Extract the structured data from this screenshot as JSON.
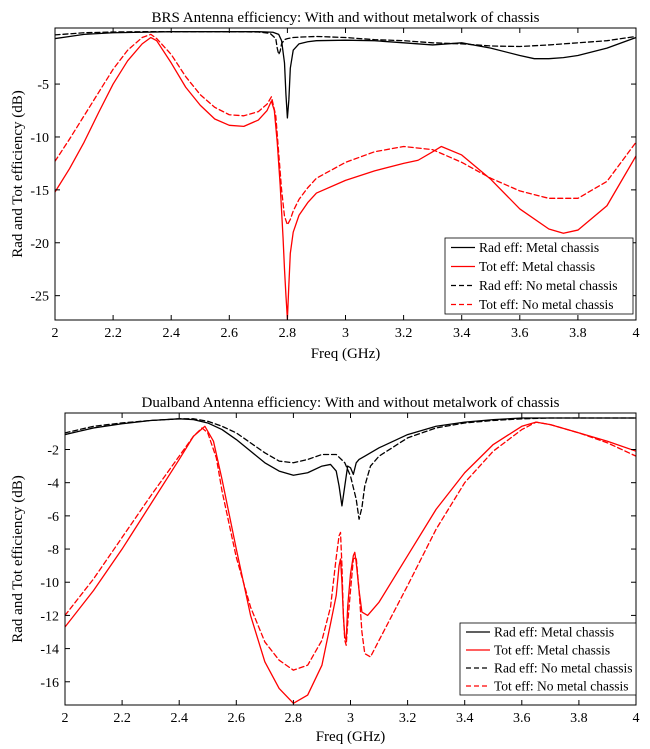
{
  "chart_data": [
    {
      "type": "line",
      "title": "BRS Antenna efficiency: With and without metalwork of chassis",
      "xlabel": "Freq (GHz)",
      "ylabel": "Rad and Tot efficiency (dB)",
      "xlim": [
        2,
        4
      ],
      "ylim": [
        -27.3,
        0.3
      ],
      "xticks": [
        2,
        2.2,
        2.4,
        2.6,
        2.8,
        3,
        3.2,
        3.4,
        3.6,
        3.8,
        4
      ],
      "xtick_labels": [
        "2",
        "2.2",
        "2.4",
        "2.6",
        "2.8",
        "3",
        "3.2",
        "3.4",
        "3.6",
        "3.8",
        "4"
      ],
      "yticks": [
        -5,
        -10,
        -15,
        -20,
        -25
      ],
      "ytick_labels": [
        "-5",
        "-10",
        "-15",
        "-20",
        "-25"
      ],
      "grid": false,
      "legend_position": "bottom-right",
      "series": [
        {
          "name": "Rad eff: Metal chassis",
          "color": "#000000",
          "dash": "solid",
          "width": 1.3,
          "x": [
            2.0,
            2.05,
            2.1,
            2.2,
            2.3,
            2.4,
            2.5,
            2.6,
            2.7,
            2.75,
            2.77,
            2.78,
            2.79,
            2.795,
            2.8,
            2.805,
            2.81,
            2.82,
            2.84,
            2.87,
            2.9,
            3.0,
            3.1,
            3.2,
            3.3,
            3.4,
            3.5,
            3.6,
            3.65,
            3.7,
            3.75,
            3.8,
            3.9,
            4.0
          ],
          "y": [
            -0.7,
            -0.5,
            -0.3,
            -0.15,
            -0.1,
            -0.05,
            -0.05,
            -0.05,
            -0.05,
            -0.1,
            -0.3,
            -0.9,
            -3.0,
            -6.0,
            -8.2,
            -6.5,
            -3.5,
            -1.8,
            -1.2,
            -1.0,
            -0.9,
            -0.85,
            -0.9,
            -1.1,
            -1.3,
            -1.1,
            -1.6,
            -2.3,
            -2.6,
            -2.6,
            -2.5,
            -2.3,
            -1.6,
            -0.6
          ]
        },
        {
          "name": "Tot eff: Metal chassis",
          "color": "#ff0000",
          "dash": "solid",
          "width": 1.3,
          "x": [
            2.0,
            2.05,
            2.1,
            2.15,
            2.2,
            2.25,
            2.3,
            2.33,
            2.35,
            2.4,
            2.45,
            2.5,
            2.55,
            2.6,
            2.65,
            2.7,
            2.73,
            2.745,
            2.755,
            2.765,
            2.775,
            2.785,
            2.79,
            2.795,
            2.8,
            2.805,
            2.81,
            2.82,
            2.84,
            2.87,
            2.9,
            3.0,
            3.1,
            3.2,
            3.25,
            3.3,
            3.33,
            3.4,
            3.5,
            3.6,
            3.7,
            3.75,
            3.8,
            3.9,
            4.0
          ],
          "y": [
            -15.2,
            -13.0,
            -10.5,
            -7.7,
            -5.0,
            -2.8,
            -1.2,
            -0.6,
            -0.9,
            -3.0,
            -5.3,
            -7.0,
            -8.3,
            -8.9,
            -9.0,
            -8.4,
            -7.5,
            -6.6,
            -7.5,
            -10.5,
            -14.5,
            -19.5,
            -22.5,
            -25.0,
            -27.2,
            -24.0,
            -21.0,
            -19.0,
            -17.4,
            -16.2,
            -15.3,
            -14.1,
            -13.2,
            -12.5,
            -12.2,
            -11.4,
            -10.9,
            -11.7,
            -14.0,
            -16.8,
            -18.7,
            -19.1,
            -18.8,
            -16.5,
            -11.8
          ]
        },
        {
          "name": "Rad eff: No metal chassis",
          "color": "#000000",
          "dash": "dashed",
          "width": 1.3,
          "x": [
            2.0,
            2.05,
            2.1,
            2.2,
            2.3,
            2.4,
            2.5,
            2.6,
            2.7,
            2.74,
            2.76,
            2.765,
            2.77,
            2.775,
            2.78,
            2.79,
            2.8,
            2.82,
            2.85,
            2.9,
            3.0,
            3.1,
            3.2,
            3.3,
            3.4,
            3.5,
            3.6,
            3.7,
            3.8,
            3.9,
            4.0
          ],
          "y": [
            -0.35,
            -0.25,
            -0.15,
            -0.08,
            -0.05,
            -0.05,
            -0.05,
            -0.05,
            -0.08,
            -0.2,
            -0.7,
            -1.6,
            -2.2,
            -1.9,
            -1.2,
            -0.8,
            -0.7,
            -0.6,
            -0.55,
            -0.5,
            -0.6,
            -0.8,
            -0.9,
            -1.1,
            -1.2,
            -1.4,
            -1.45,
            -1.3,
            -1.1,
            -0.9,
            -0.5
          ]
        },
        {
          "name": "Tot eff: No metal chassis",
          "color": "#ff0000",
          "dash": "dashed",
          "width": 1.3,
          "x": [
            2.0,
            2.05,
            2.1,
            2.15,
            2.2,
            2.25,
            2.3,
            2.33,
            2.35,
            2.4,
            2.45,
            2.5,
            2.55,
            2.6,
            2.65,
            2.7,
            2.73,
            2.745,
            2.76,
            2.77,
            2.78,
            2.79,
            2.8,
            2.81,
            2.82,
            2.84,
            2.87,
            2.9,
            3.0,
            3.1,
            3.2,
            3.3,
            3.4,
            3.5,
            3.6,
            3.7,
            3.8,
            3.9,
            4.0
          ],
          "y": [
            -12.3,
            -10.2,
            -8.0,
            -5.8,
            -3.6,
            -1.8,
            -0.6,
            -0.3,
            -0.7,
            -2.2,
            -4.3,
            -6.0,
            -7.2,
            -7.9,
            -8.0,
            -7.6,
            -6.9,
            -6.2,
            -8.0,
            -11.5,
            -15.0,
            -17.5,
            -18.3,
            -17.8,
            -17.0,
            -15.9,
            -14.8,
            -13.9,
            -12.4,
            -11.4,
            -10.9,
            -11.2,
            -12.4,
            -13.9,
            -15.1,
            -15.8,
            -15.8,
            -14.2,
            -10.5
          ]
        }
      ]
    },
    {
      "type": "line",
      "title": "Dualband Antenna efficiency: With and without metalwork of chassis",
      "xlabel": "Freq (GHz)",
      "ylabel": "Rad and Tot efficiency (dB)",
      "xlim": [
        2,
        4
      ],
      "ylim": [
        -17.4,
        0.2
      ],
      "xticks": [
        2,
        2.2,
        2.4,
        2.6,
        2.8,
        3,
        3.2,
        3.4,
        3.6,
        3.8,
        4
      ],
      "xtick_labels": [
        "2",
        "2.2",
        "2.4",
        "2.6",
        "2.8",
        "3",
        "3.2",
        "3.4",
        "3.6",
        "3.8",
        "4"
      ],
      "yticks": [
        -2,
        -4,
        -6,
        -8,
        -10,
        -12,
        -14,
        -16
      ],
      "ytick_labels": [
        "-2",
        "-4",
        "-6",
        "-8",
        "-10",
        "-12",
        "-14",
        "-16"
      ],
      "grid": false,
      "legend_position": "bottom-right",
      "series": [
        {
          "name": "Rad eff: Metal chassis",
          "color": "#000000",
          "dash": "solid",
          "width": 1.3,
          "x": [
            2.0,
            2.05,
            2.1,
            2.2,
            2.3,
            2.4,
            2.45,
            2.5,
            2.55,
            2.6,
            2.65,
            2.7,
            2.75,
            2.8,
            2.85,
            2.9,
            2.93,
            2.95,
            2.96,
            2.97,
            2.98,
            2.99,
            3.0,
            3.01,
            3.02,
            3.03,
            3.05,
            3.1,
            3.2,
            3.3,
            3.4,
            3.5,
            3.6,
            3.7,
            3.8,
            3.9,
            4.0
          ],
          "y": [
            -1.1,
            -0.9,
            -0.7,
            -0.45,
            -0.25,
            -0.15,
            -0.2,
            -0.4,
            -0.8,
            -1.4,
            -2.1,
            -2.8,
            -3.3,
            -3.55,
            -3.4,
            -3.0,
            -2.9,
            -3.3,
            -4.2,
            -5.4,
            -4.2,
            -3.0,
            -3.1,
            -3.5,
            -2.8,
            -2.6,
            -2.4,
            -1.9,
            -1.1,
            -0.6,
            -0.35,
            -0.2,
            -0.1,
            -0.1,
            -0.1,
            -0.1,
            -0.1
          ]
        },
        {
          "name": "Tot eff: Metal chassis",
          "color": "#ff0000",
          "dash": "solid",
          "width": 1.3,
          "x": [
            2.0,
            2.1,
            2.2,
            2.3,
            2.4,
            2.45,
            2.49,
            2.52,
            2.55,
            2.6,
            2.65,
            2.7,
            2.75,
            2.8,
            2.85,
            2.9,
            2.93,
            2.95,
            2.96,
            2.965,
            2.97,
            2.975,
            2.98,
            2.985,
            2.99,
            3.0,
            3.01,
            3.015,
            3.02,
            3.03,
            3.04,
            3.06,
            3.1,
            3.2,
            3.3,
            3.4,
            3.5,
            3.6,
            3.65,
            3.7,
            3.8,
            3.9,
            4.0
          ],
          "y": [
            -12.7,
            -10.5,
            -8.0,
            -5.3,
            -2.6,
            -1.2,
            -0.6,
            -1.5,
            -3.8,
            -8.0,
            -12.0,
            -14.8,
            -16.4,
            -17.3,
            -16.8,
            -15.0,
            -12.5,
            -10.8,
            -9.0,
            -8.6,
            -10.0,
            -12.0,
            -13.3,
            -13.5,
            -11.5,
            -9.5,
            -8.4,
            -8.2,
            -8.8,
            -10.5,
            -11.8,
            -12.0,
            -11.2,
            -8.4,
            -5.6,
            -3.4,
            -1.7,
            -0.6,
            -0.35,
            -0.5,
            -1.0,
            -1.5,
            -2.1
          ]
        },
        {
          "name": "Rad eff: No metal chassis",
          "color": "#000000",
          "dash": "dashed",
          "width": 1.3,
          "x": [
            2.0,
            2.05,
            2.1,
            2.2,
            2.3,
            2.4,
            2.45,
            2.5,
            2.55,
            2.6,
            2.65,
            2.7,
            2.75,
            2.8,
            2.85,
            2.9,
            2.95,
            2.98,
            3.0,
            3.02,
            3.03,
            3.04,
            3.05,
            3.07,
            3.1,
            3.2,
            3.3,
            3.4,
            3.5,
            3.6,
            3.7,
            3.8,
            3.9,
            4.0
          ],
          "y": [
            -1.0,
            -0.8,
            -0.6,
            -0.4,
            -0.25,
            -0.15,
            -0.15,
            -0.3,
            -0.6,
            -1.0,
            -1.6,
            -2.2,
            -2.7,
            -2.8,
            -2.6,
            -2.3,
            -2.3,
            -2.8,
            -3.6,
            -5.0,
            -6.2,
            -5.5,
            -4.2,
            -3.0,
            -2.4,
            -1.3,
            -0.7,
            -0.4,
            -0.25,
            -0.15,
            -0.1,
            -0.1,
            -0.1,
            -0.1
          ]
        },
        {
          "name": "Tot eff: No metal chassis",
          "color": "#ff0000",
          "dash": "dashed",
          "width": 1.3,
          "x": [
            2.0,
            2.1,
            2.2,
            2.3,
            2.4,
            2.45,
            2.48,
            2.5,
            2.53,
            2.55,
            2.6,
            2.65,
            2.7,
            2.75,
            2.8,
            2.85,
            2.9,
            2.93,
            2.95,
            2.96,
            2.965,
            2.97,
            2.975,
            2.98,
            2.985,
            2.99,
            3.0,
            3.01,
            3.02,
            3.03,
            3.04,
            3.05,
            3.07,
            3.1,
            3.2,
            3.3,
            3.4,
            3.5,
            3.6,
            3.65,
            3.7,
            3.8,
            3.9,
            4.0
          ],
          "y": [
            -12.0,
            -9.8,
            -7.3,
            -4.8,
            -2.4,
            -1.2,
            -0.7,
            -1.0,
            -2.5,
            -4.5,
            -8.5,
            -11.5,
            -13.6,
            -14.7,
            -15.3,
            -15.0,
            -13.5,
            -11.5,
            -8.5,
            -7.2,
            -7.0,
            -9.0,
            -12.0,
            -13.5,
            -13.8,
            -12.5,
            -10.5,
            -8.6,
            -8.5,
            -10.5,
            -13.0,
            -14.3,
            -14.5,
            -13.5,
            -10.2,
            -6.8,
            -4.0,
            -2.1,
            -0.8,
            -0.35,
            -0.5,
            -1.0,
            -1.6,
            -2.4
          ]
        }
      ]
    }
  ]
}
